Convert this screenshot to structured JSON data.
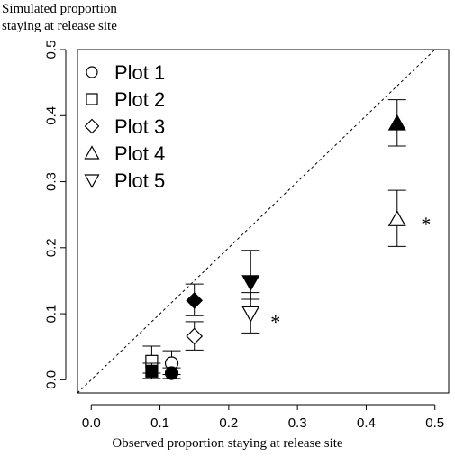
{
  "chart_data": {
    "type": "scatter",
    "title": "",
    "ylabel_lines": [
      "Simulated proportion",
      "staying at release site"
    ],
    "xlabel": "Observed proportion staying at release site",
    "xlim": [
      -0.02,
      0.52
    ],
    "ylim": [
      -0.02,
      0.5
    ],
    "xticks": [
      0.0,
      0.1,
      0.2,
      0.3,
      0.4,
      0.5
    ],
    "xtick_labels": [
      "0.0",
      "0.1",
      "0.2",
      "0.3",
      "0.4",
      "0.5"
    ],
    "yticks": [
      0.0,
      0.1,
      0.2,
      0.3,
      0.4,
      0.5
    ],
    "ytick_labels": [
      "0.0",
      "0.1",
      "0.2",
      "0.3",
      "0.4",
      "0.5"
    ],
    "reference_line": "y = x (dashed)",
    "legend_position": "top-left",
    "legend": [
      {
        "label": "Plot 1",
        "shape": "circle"
      },
      {
        "label": "Plot 2",
        "shape": "square"
      },
      {
        "label": "Plot 3",
        "shape": "diamond"
      },
      {
        "label": "Plot 4",
        "shape": "triangle-up"
      },
      {
        "label": "Plot 5",
        "shape": "triangle-down"
      }
    ],
    "points": [
      {
        "shape": "circle",
        "filled": false,
        "x": 0.117,
        "y": 0.025,
        "err_low": 0.008,
        "err_high": 0.044
      },
      {
        "shape": "circle",
        "filled": true,
        "x": 0.117,
        "y": 0.01,
        "err_low": 0.002,
        "err_high": 0.018
      },
      {
        "shape": "square",
        "filled": false,
        "x": 0.088,
        "y": 0.028,
        "err_low": 0.01,
        "err_high": 0.051
      },
      {
        "shape": "square",
        "filled": true,
        "x": 0.088,
        "y": 0.013,
        "err_low": 0.002,
        "err_high": 0.025
      },
      {
        "shape": "diamond",
        "filled": false,
        "x": 0.15,
        "y": 0.066,
        "err_low": 0.045,
        "err_high": 0.088
      },
      {
        "shape": "diamond",
        "filled": true,
        "x": 0.15,
        "y": 0.12,
        "err_low": 0.097,
        "err_high": 0.145
      },
      {
        "shape": "triangle-up",
        "filled": false,
        "x": 0.445,
        "y": 0.243,
        "err_low": 0.202,
        "err_high": 0.287
      },
      {
        "shape": "triangle-up",
        "filled": true,
        "x": 0.445,
        "y": 0.388,
        "err_low": 0.354,
        "err_high": 0.424
      },
      {
        "shape": "triangle-down",
        "filled": false,
        "x": 0.232,
        "y": 0.101,
        "err_low": 0.071,
        "err_high": 0.132
      },
      {
        "shape": "triangle-down",
        "filled": true,
        "x": 0.232,
        "y": 0.148,
        "err_low": 0.122,
        "err_high": 0.196
      }
    ],
    "annotations": [
      {
        "text": "*",
        "x": 0.487,
        "y": 0.238
      },
      {
        "text": "*",
        "x": 0.268,
        "y": 0.09
      }
    ]
  }
}
